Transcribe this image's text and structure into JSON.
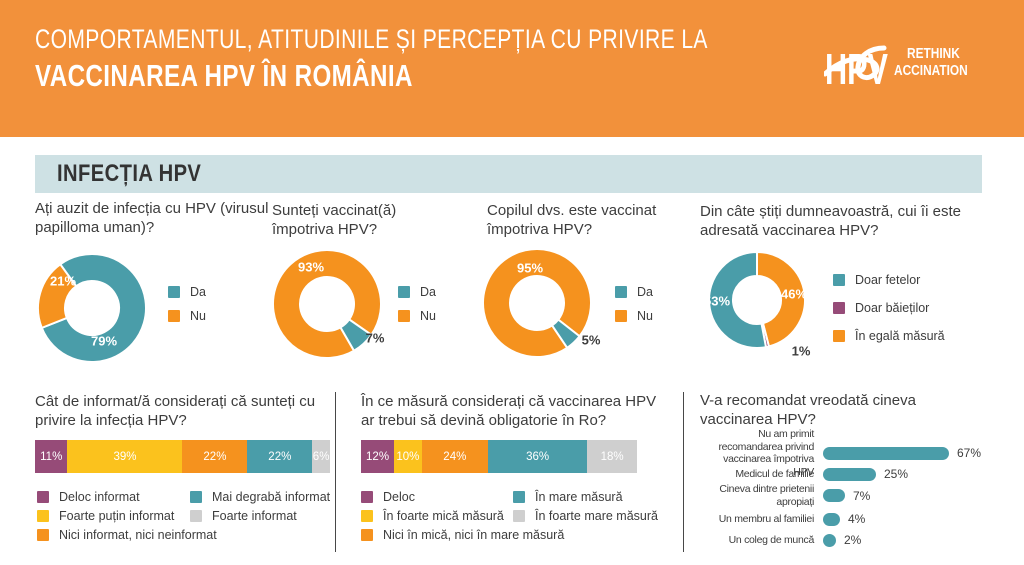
{
  "header": {
    "title_line1": "COMPORTAMENTUL, ATITUDINILE ȘI PERCEPȚIA CU PRIVIRE LA",
    "title_line2": "VACCINAREA HPV ÎN ROMÂNIA",
    "logo": {
      "monogram": "HPV",
      "line1": "RETHINK",
      "line2": "ACCINATION"
    }
  },
  "section_title": "INFECȚIA HPV",
  "colors": {
    "header_orange": "#F2913B",
    "orange": "#F5921E",
    "teal": "#4A9DA9",
    "purple": "#964B78",
    "yellow": "#FBC21D",
    "gray": "#CFCFCF",
    "band_blue": "#CEE1E4",
    "text": "#3D3D3D"
  },
  "chart_data": {
    "donuts": [
      {
        "type": "pie",
        "question": "Ați auzit de infecția cu HPV (virusul papilloma uman)?",
        "segments": [
          {
            "label": "Da",
            "value": 79,
            "color": "#4A9DA9"
          },
          {
            "label": "Nu",
            "value": 21,
            "color": "#F5921E"
          }
        ]
      },
      {
        "type": "pie",
        "question": "Sunteți vaccinat(ă) împotriva HPV?",
        "segments": [
          {
            "label": "Da",
            "value": 7,
            "color": "#4A9DA9"
          },
          {
            "label": "Nu",
            "value": 93,
            "color": "#F5921E"
          }
        ]
      },
      {
        "type": "pie",
        "question": "Copilul dvs. este vaccinat împotriva HPV?",
        "segments": [
          {
            "label": "Da",
            "value": 5,
            "color": "#4A9DA9"
          },
          {
            "label": "Nu",
            "value": 95,
            "color": "#F5921E"
          }
        ]
      },
      {
        "type": "pie",
        "question": "Din câte știți dumneavoastră, cui îi este adresată vaccinarea HPV?",
        "segments": [
          {
            "label": "Doar fetelor",
            "value": 53,
            "color": "#4A9DA9"
          },
          {
            "label": "Doar băieților",
            "value": 1,
            "color": "#964B78"
          },
          {
            "label": "În egală măsură",
            "value": 46,
            "color": "#F5921E"
          }
        ]
      }
    ],
    "stacked_bars": [
      {
        "type": "bar",
        "question": "Cât de informat/ă considerați că sunteți cu privire la infecția HPV?",
        "segments": [
          {
            "label": "Deloc informat",
            "value": 11,
            "color": "#964B78"
          },
          {
            "label": "Foarte puțin informat",
            "value": 39,
            "color": "#FBC21D"
          },
          {
            "label": "Nici informat, nici neinformat",
            "value": 22,
            "color": "#F5921E"
          },
          {
            "label": "Mai degrabă informat",
            "value": 22,
            "color": "#4A9DA9"
          },
          {
            "label": "Foarte informat",
            "value": 6,
            "color": "#CFCFCF"
          }
        ]
      },
      {
        "type": "bar",
        "question": "În ce măsură considerați că vaccinarea HPV ar trebui să devină obligatorie în Ro?",
        "segments": [
          {
            "label": "Deloc",
            "value": 12,
            "color": "#964B78"
          },
          {
            "label": "În foarte mică măsură",
            "value": 10,
            "color": "#FBC21D"
          },
          {
            "label": "Nici în mică, nici în mare măsură",
            "value": 24,
            "color": "#F5921E"
          },
          {
            "label": "În mare măsură",
            "value": 36,
            "color": "#4A9DA9"
          },
          {
            "label": "În foarte mare măsură",
            "value": 18,
            "color": "#CFCFCF"
          }
        ]
      }
    ],
    "hbar": {
      "type": "bar",
      "question": "V-a recomandat vreodată cineva vaccinarea HPV?",
      "bar_color": "#4A9DA9",
      "bars": [
        {
          "label": "Nu am primit recomandarea privind vaccinarea împotriva HPV",
          "value": 67
        },
        {
          "label": "Medicul de familie",
          "value": 25
        },
        {
          "label": "Cineva dintre prietenii apropiați",
          "value": 7
        },
        {
          "label": "Un membru al familiei",
          "value": 4
        },
        {
          "label": "Un coleg de muncă",
          "value": 2
        }
      ]
    }
  }
}
